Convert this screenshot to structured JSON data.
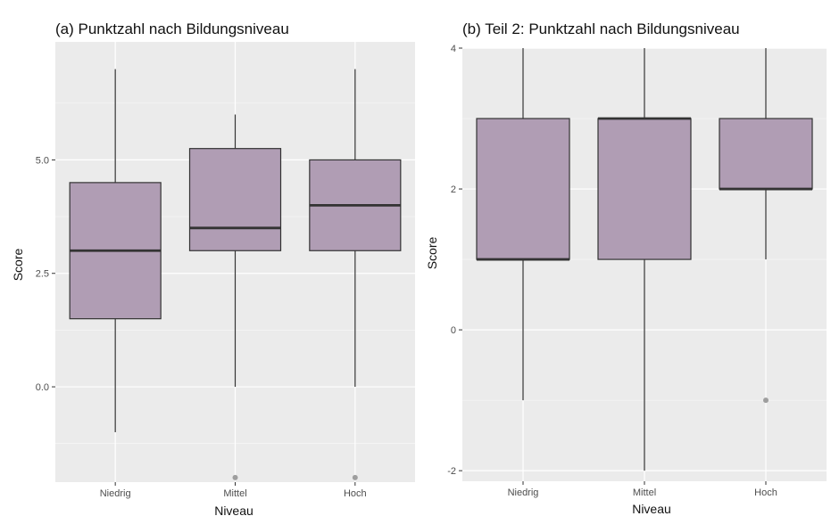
{
  "chart_data": [
    {
      "type": "boxplot",
      "title": "(a) Punktzahl nach Bildungsniveau",
      "xlabel": "Niveau",
      "ylabel": "Score",
      "categories": [
        "Niedrig",
        "Mittel",
        "Hoch"
      ],
      "ylim": [
        -2.1,
        7.6
      ],
      "yticks": [
        0.0,
        2.5,
        5.0
      ],
      "ytick_labels": [
        "0.0",
        "2.5",
        "5.0"
      ],
      "boxes": [
        {
          "category": "Niedrig",
          "whisker_low": -1,
          "q1": 1.5,
          "median": 3.0,
          "q3": 4.5,
          "whisker_high": 7,
          "outliers": []
        },
        {
          "category": "Mittel",
          "whisker_low": 0,
          "q1": 3.0,
          "median": 3.5,
          "q3": 5.25,
          "whisker_high": 6,
          "outliers": [
            -2
          ]
        },
        {
          "category": "Hoch",
          "whisker_low": 0,
          "q1": 3.0,
          "median": 4.0,
          "q3": 5.0,
          "whisker_high": 7,
          "outliers": [
            -2
          ]
        }
      ],
      "grid": true,
      "colors": {
        "fill": "#b09db4",
        "edge": "#333333",
        "panel": "#ebebeb",
        "grid": "#ffffff",
        "outlier": "#9e9e9e"
      }
    },
    {
      "type": "boxplot",
      "title": "(b) Teil 2: Punktzahl nach Bildungsniveau",
      "xlabel": "Niveau",
      "ylabel": "Score",
      "categories": [
        "Niedrig",
        "Mittel",
        "Hoch"
      ],
      "ylim": [
        -2.15,
        4.0
      ],
      "yticks": [
        -2,
        0,
        2,
        4
      ],
      "ytick_labels": [
        "-2",
        "0",
        "2",
        "4"
      ],
      "boxes": [
        {
          "category": "Niedrig",
          "whisker_low": -1,
          "q1": 1,
          "median": 1,
          "q3": 3,
          "whisker_high": 4,
          "outliers": []
        },
        {
          "category": "Mittel",
          "whisker_low": -2,
          "q1": 1,
          "median": 3,
          "q3": 3,
          "whisker_high": 4,
          "outliers": []
        },
        {
          "category": "Hoch",
          "whisker_low": 1,
          "q1": 2,
          "median": 2,
          "q3": 3,
          "whisker_high": 4,
          "outliers": [
            -1
          ]
        }
      ],
      "grid": true,
      "colors": {
        "fill": "#b09db4",
        "edge": "#333333",
        "panel": "#ebebeb",
        "grid": "#ffffff",
        "outlier": "#9e9e9e"
      }
    }
  ]
}
